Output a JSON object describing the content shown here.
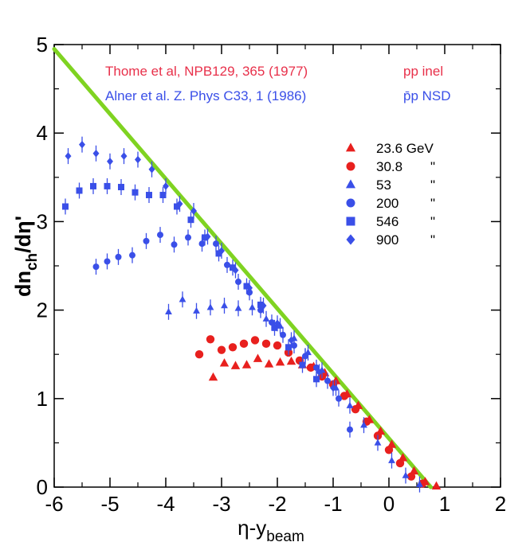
{
  "chart_data": {
    "type": "scatter",
    "xlabel": "η-y",
    "xlabel_sub": "beam",
    "ylabel": "dn",
    "ylabel_sub": "ch",
    "ylabel_tail": "/dη'",
    "xlim": [
      -6,
      2
    ],
    "ylim": [
      0,
      5
    ],
    "x_ticks": [
      -6,
      -5,
      -4,
      -3,
      -2,
      -1,
      0,
      1,
      2
    ],
    "y_ticks": [
      0,
      1,
      2,
      3,
      4,
      5
    ],
    "grid": false,
    "legend_position": "right",
    "annotations": [
      {
        "text": "Thome et al, NPB129, 365 (1977)",
        "color": "#e8304a"
      },
      {
        "text": "pp inel",
        "color": "#e8304a"
      },
      {
        "text": "Alner et al. Z. Phys C33, 1 (1986)",
        "color": "#3a4fe8"
      },
      {
        "text": "p̄p NSD",
        "color": "#3a4fe8"
      }
    ],
    "fit_line": {
      "x": [
        -6,
        0.75
      ],
      "y": [
        4.95,
        0
      ],
      "color": "#7fd321"
    },
    "series": [
      {
        "name": "23.6 GeV",
        "marker": "triangle",
        "color": "#e8201e",
        "points": [
          [
            -3.15,
            1.24
          ],
          [
            -2.95,
            1.4
          ],
          [
            -2.75,
            1.37
          ],
          [
            -2.55,
            1.38
          ],
          [
            -2.35,
            1.45
          ],
          [
            -2.15,
            1.39
          ],
          [
            -1.95,
            1.41
          ],
          [
            -1.75,
            1.42
          ],
          [
            -1.55,
            1.38
          ],
          [
            -1.35,
            1.36
          ],
          [
            -1.15,
            1.29
          ],
          [
            -0.95,
            1.2
          ],
          [
            -0.75,
            1.05
          ],
          [
            -0.55,
            0.92
          ],
          [
            -0.35,
            0.76
          ],
          [
            -0.15,
            0.63
          ],
          [
            0.05,
            0.48
          ],
          [
            0.25,
            0.33
          ],
          [
            0.45,
            0.18
          ],
          [
            0.65,
            0.06
          ],
          [
            0.85,
            0.01
          ]
        ]
      },
      {
        "name": "30.8",
        "ditto": "\"",
        "marker": "circle",
        "color": "#e8201e",
        "points": [
          [
            -3.4,
            1.5
          ],
          [
            -3.2,
            1.67
          ],
          [
            -3.0,
            1.55
          ],
          [
            -2.8,
            1.58
          ],
          [
            -2.6,
            1.62
          ],
          [
            -2.4,
            1.66
          ],
          [
            -2.2,
            1.62
          ],
          [
            -2.0,
            1.6
          ],
          [
            -1.8,
            1.52
          ],
          [
            -1.6,
            1.43
          ],
          [
            -1.4,
            1.35
          ],
          [
            -1.2,
            1.25
          ],
          [
            -1.0,
            1.16
          ],
          [
            -0.8,
            1.03
          ],
          [
            -0.6,
            0.88
          ],
          [
            -0.4,
            0.74
          ],
          [
            -0.2,
            0.58
          ],
          [
            0.0,
            0.42
          ],
          [
            0.2,
            0.27
          ],
          [
            0.4,
            0.12
          ],
          [
            0.6,
            0.04
          ]
        ]
      },
      {
        "name": "53",
        "ditto": "\"",
        "marker": "triangle",
        "color": "#3a4fe8",
        "points": [
          [
            -3.95,
            1.98
          ],
          [
            -3.7,
            2.12
          ],
          [
            -3.45,
            1.99
          ],
          [
            -3.2,
            2.03
          ],
          [
            -2.95,
            2.05
          ],
          [
            -2.7,
            2.02
          ],
          [
            -2.45,
            2.03
          ],
          [
            -2.2,
            1.9
          ],
          [
            -1.95,
            1.82
          ],
          [
            -1.7,
            1.68
          ],
          [
            -1.45,
            1.52
          ],
          [
            -1.2,
            1.32
          ],
          [
            -0.95,
            1.12
          ],
          [
            -0.7,
            0.92
          ],
          [
            -0.45,
            0.7
          ],
          [
            -0.2,
            0.5
          ],
          [
            0.05,
            0.3
          ],
          [
            0.3,
            0.13
          ],
          [
            0.55,
            0.03
          ]
        ]
      },
      {
        "name": "200",
        "ditto": "\"",
        "marker": "circle",
        "color": "#3a4fe8",
        "points": [
          [
            -5.25,
            2.49
          ],
          [
            -5.05,
            2.55
          ],
          [
            -4.85,
            2.6
          ],
          [
            -4.6,
            2.62
          ],
          [
            -4.35,
            2.78
          ],
          [
            -4.1,
            2.85
          ],
          [
            -3.85,
            2.74
          ],
          [
            -3.6,
            2.82
          ],
          [
            -3.35,
            2.75
          ],
          [
            -3.1,
            2.75
          ],
          [
            -2.9,
            2.51
          ],
          [
            -2.7,
            2.32
          ],
          [
            -2.5,
            2.2
          ],
          [
            -2.3,
            2.0
          ],
          [
            -2.1,
            1.86
          ],
          [
            -1.9,
            1.72
          ],
          [
            -1.7,
            1.6
          ],
          [
            -1.5,
            1.48
          ],
          [
            -1.3,
            1.35
          ],
          [
            -1.1,
            1.2
          ],
          [
            -0.9,
            1.0
          ],
          [
            -0.7,
            0.65
          ]
        ]
      },
      {
        "name": "546",
        "ditto": "\"",
        "marker": "square",
        "color": "#3a4fe8",
        "points": [
          [
            -5.8,
            3.17
          ],
          [
            -5.55,
            3.35
          ],
          [
            -5.3,
            3.4
          ],
          [
            -5.05,
            3.4
          ],
          [
            -4.8,
            3.39
          ],
          [
            -4.55,
            3.33
          ],
          [
            -4.3,
            3.3
          ],
          [
            -4.05,
            3.3
          ],
          [
            -3.8,
            3.17
          ],
          [
            -3.55,
            3.02
          ],
          [
            -3.3,
            2.82
          ],
          [
            -3.05,
            2.64
          ],
          [
            -2.8,
            2.48
          ],
          [
            -2.55,
            2.27
          ],
          [
            -2.3,
            2.06
          ],
          [
            -2.05,
            1.8
          ],
          [
            -1.8,
            1.58
          ],
          [
            -1.55,
            1.38
          ],
          [
            -1.3,
            1.22
          ]
        ]
      },
      {
        "name": "900",
        "ditto": "\"",
        "marker": "diamond",
        "color": "#3a4fe8",
        "points": [
          [
            -5.75,
            3.74
          ],
          [
            -5.5,
            3.87
          ],
          [
            -5.25,
            3.77
          ],
          [
            -5.0,
            3.68
          ],
          [
            -4.75,
            3.74
          ],
          [
            -4.5,
            3.7
          ],
          [
            -4.25,
            3.59
          ],
          [
            -4.0,
            3.4
          ],
          [
            -3.75,
            3.2
          ],
          [
            -3.5,
            3.12
          ],
          [
            -3.25,
            2.83
          ],
          [
            -3.0,
            2.67
          ],
          [
            -2.75,
            2.45
          ],
          [
            -2.5,
            2.25
          ],
          [
            -2.25,
            2.05
          ],
          [
            -2.0,
            1.85
          ],
          [
            -1.75,
            1.66
          ],
          [
            -1.5,
            1.48
          ],
          [
            -1.25,
            1.3
          ],
          [
            -1.0,
            1.12
          ]
        ]
      }
    ]
  }
}
